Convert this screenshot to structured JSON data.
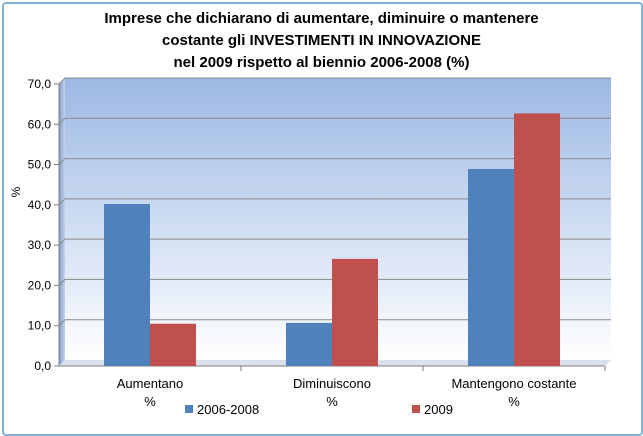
{
  "chart_data": {
    "type": "bar",
    "title_lines": [
      "Imprese che dichiarano di aumentare, diminuire o mantenere",
      "costante gli INVESTIMENTI IN INNOVAZIONE",
      "nel 2009 rispetto al biennio 2006-2008 (%)"
    ],
    "ylabel": "%",
    "ylim": [
      0,
      70
    ],
    "yticks": [
      "0,0",
      "10,0",
      "20,0",
      "30,0",
      "40,0",
      "50,0",
      "60,0",
      "70,0"
    ],
    "categories": [
      [
        "Aumentano",
        "%"
      ],
      [
        "Diminuiscono",
        "%"
      ],
      [
        "Mantengono costante",
        "%"
      ]
    ],
    "series": [
      {
        "name": "2006-2008",
        "color": "#4f81bd",
        "values": [
          40.2,
          10.7,
          48.9
        ]
      },
      {
        "name": "2009",
        "color": "#c0504d",
        "values": [
          10.5,
          26.6,
          62.7
        ]
      }
    ],
    "grid": true,
    "legend": "bottom"
  }
}
